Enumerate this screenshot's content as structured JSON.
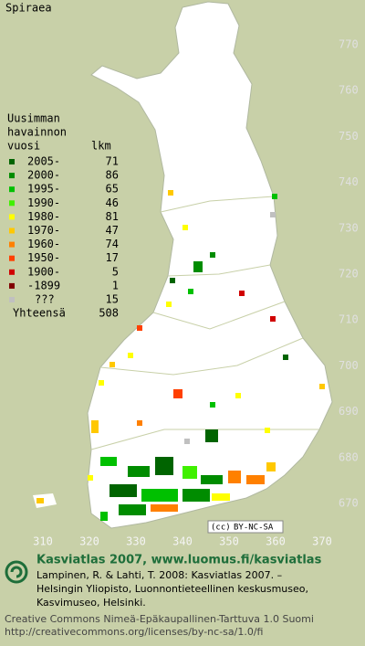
{
  "title": "Spiraea",
  "legend": {
    "heading": [
      "Uusimman",
      "havainnon",
      "vuosi"
    ],
    "count_heading": "lkm",
    "rows": [
      {
        "label": "2005-",
        "count": 71,
        "color": "#006400"
      },
      {
        "label": "2000-",
        "count": 86,
        "color": "#008c00"
      },
      {
        "label": "1995-",
        "count": 65,
        "color": "#00c000"
      },
      {
        "label": "1990-",
        "count": 46,
        "color": "#40f000"
      },
      {
        "label": "1980-",
        "count": 81,
        "color": "#ffff00"
      },
      {
        "label": "1970-",
        "count": 47,
        "color": "#ffc800"
      },
      {
        "label": "1960-",
        "count": 74,
        "color": "#ff8000"
      },
      {
        "label": "1950-",
        "count": 17,
        "color": "#ff4000"
      },
      {
        "label": "1900-",
        "count": 5,
        "color": "#d00000"
      },
      {
        "label": "-1899",
        "count": 1,
        "color": "#800000"
      },
      {
        "label": "???",
        "count": 15,
        "color": "#c0c0c0"
      }
    ],
    "total_label": "Yhteensä",
    "total": 508
  },
  "grid": {
    "x_labels": [
      310,
      320,
      330,
      340,
      350,
      360,
      370
    ],
    "y_labels": [
      770,
      760,
      750,
      740,
      730,
      720,
      710,
      700,
      690,
      680,
      670
    ]
  },
  "license_badge": "BY-NC-SA",
  "footer": {
    "title": "Kasviatlas 2007, www.luomus.fi/kasviatlas",
    "citation": [
      "Lampinen, R. & Lahti, T. 2008: Kasviatlas 2007. –",
      "Helsingin Yliopisto, Luonnontieteellinen keskusmuseo,",
      "Kasvimuseo, Helsinki."
    ],
    "license": [
      "Creative Commons Nimeä-Epäkaupallinen-Tarttuva 1.0 Suomi",
      "http://creativecommons.org/licenses/by-nc-sa/1.0/fi"
    ]
  }
}
